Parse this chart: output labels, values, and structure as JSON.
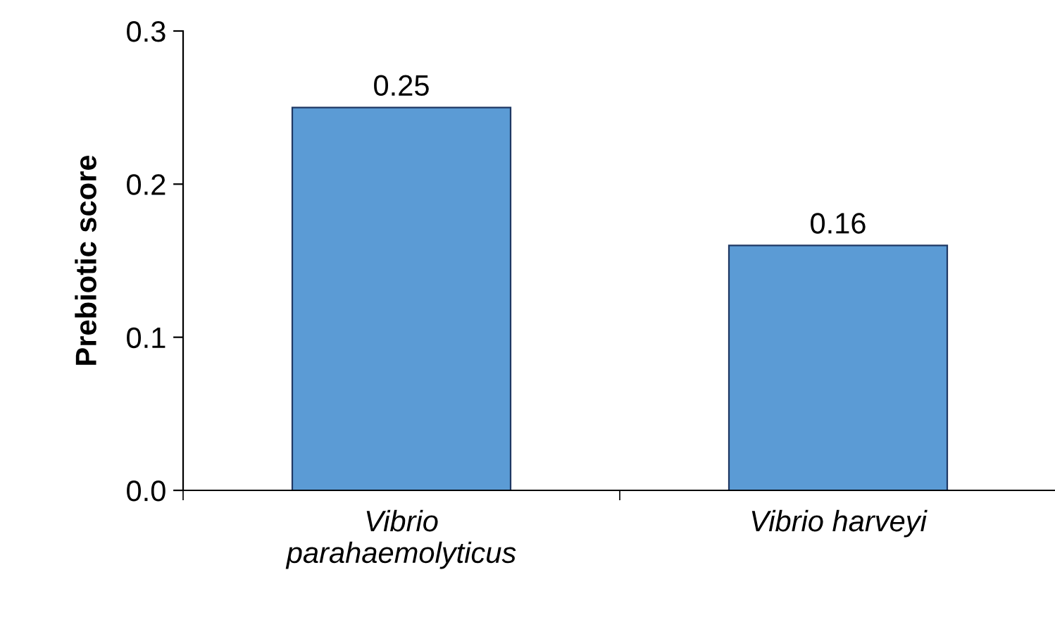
{
  "chart_data": {
    "type": "bar",
    "ylabel": "Prebiotic score",
    "categories": [
      "Vibrio\nparahaemolyticus",
      "Vibrio harveyi"
    ],
    "values": [
      0.25,
      0.16
    ],
    "color": "#5b9bd5",
    "data_labels": true,
    "ylim": [
      0,
      0.3
    ],
    "yticks": [
      {
        "value": 0,
        "label": "0.0"
      },
      {
        "value": 0.1,
        "label": "0.1"
      },
      {
        "value": 0.2,
        "label": "0.2"
      },
      {
        "value": 0.3,
        "label": "0.3"
      }
    ],
    "grid": false,
    "legend": false
  }
}
